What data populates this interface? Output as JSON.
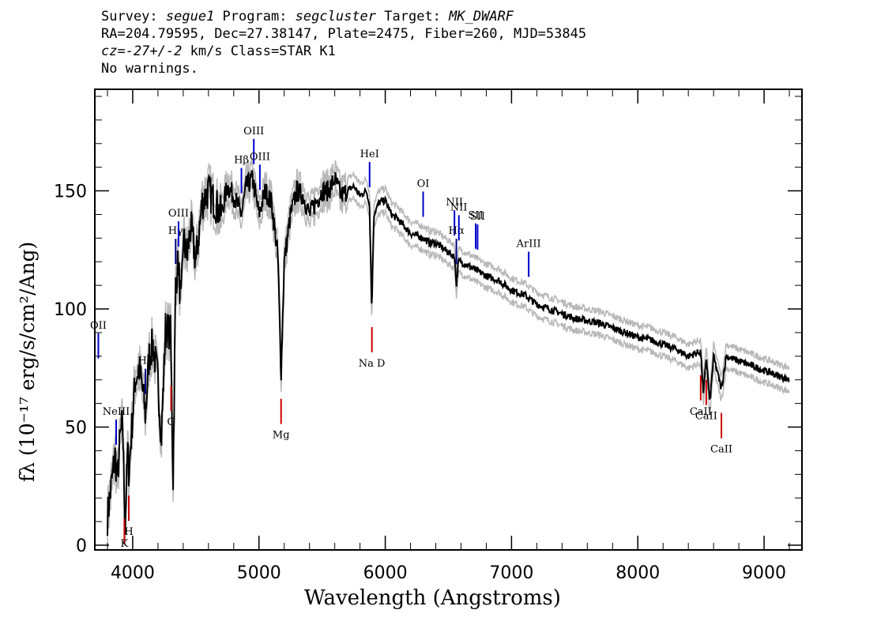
{
  "header": {
    "line1": {
      "l1": "Survey: ",
      "survey": "segue1",
      "l2": " Program: ",
      "program": "segcluster",
      "l3": " Target: ",
      "target": "MK_DWARF"
    },
    "line2": "RA=204.79595, Dec=27.38147, Plate=2475, Fiber=260, MJD=53845",
    "line3": {
      "cz": "cz=-27+/-2",
      "rest": " km/s Class=STAR K1"
    },
    "line4": "No warnings."
  },
  "chart_data": {
    "type": "line",
    "xlabel": "Wavelength (Angstroms)",
    "ylabel": "fλ (10⁻¹⁷ erg/s/cm²/Ang)",
    "xlim": [
      3700,
      9300
    ],
    "ylim": [
      -2,
      193
    ],
    "xticks": [
      4000,
      5000,
      6000,
      7000,
      8000,
      9000
    ],
    "yticks": [
      0,
      50,
      100,
      150
    ],
    "grid": false,
    "series": [
      {
        "color": "#000000",
        "x": [
          3800,
          3830,
          3860,
          3880,
          3900,
          3920,
          3940,
          3960,
          3970,
          3990,
          4020,
          4050,
          4080,
          4101,
          4130,
          4160,
          4200,
          4227,
          4260,
          4300,
          4320,
          4340,
          4360,
          4383,
          4400,
          4430,
          4460,
          4500,
          4550,
          4600,
          4650,
          4700,
          4750,
          4800,
          4861,
          4900,
          4950,
          5000,
          5050,
          5100,
          5150,
          5175,
          5200,
          5250,
          5300,
          5350,
          5400,
          5450,
          5500,
          5550,
          5600,
          5650,
          5700,
          5750,
          5800,
          5850,
          5875,
          5893,
          5910,
          5950,
          6000,
          6050,
          6100,
          6150,
          6200,
          6250,
          6300,
          6350,
          6400,
          6450,
          6500,
          6550,
          6563,
          6580,
          6600,
          6700,
          6800,
          6900,
          7000,
          7100,
          7200,
          7300,
          7400,
          7500,
          7600,
          7700,
          7800,
          7900,
          8000,
          8100,
          8200,
          8300,
          8400,
          8498,
          8520,
          8542,
          8570,
          8600,
          8662,
          8700,
          8800,
          8900,
          9000,
          9100,
          9200
        ],
        "y": [
          12,
          25,
          38,
          28,
          45,
          52,
          8,
          40,
          30,
          48,
          70,
          75,
          65,
          55,
          80,
          85,
          70,
          45,
          92,
          90,
          28,
          110,
          120,
          100,
          130,
          122,
          135,
          120,
          145,
          150,
          145,
          140,
          152,
          148,
          140,
          152,
          155,
          140,
          150,
          145,
          122,
          72,
          120,
          140,
          150,
          148,
          140,
          145,
          150,
          150,
          155,
          148,
          150,
          152,
          148,
          150,
          145,
          100,
          140,
          145,
          146,
          140,
          138,
          135,
          132,
          131,
          130,
          128,
          128,
          126,
          124,
          122,
          110,
          120,
          120,
          117,
          114,
          112,
          108,
          106,
          102,
          100,
          98,
          96,
          95,
          94,
          92,
          90,
          88,
          87,
          85,
          83,
          80,
          82,
          64,
          80,
          60,
          80,
          66,
          80,
          78,
          76,
          74,
          72,
          70
        ]
      }
    ],
    "line_labels": [
      {
        "label": "OII",
        "x": 3728,
        "color": "#0000cc"
      },
      {
        "label": "NeIII",
        "x": 3869,
        "color": "#0000cc"
      },
      {
        "label": "Hδ",
        "x": 4101,
        "color": "#000080"
      },
      {
        "label": "Hγ",
        "x": 4340,
        "color": "#000080"
      },
      {
        "label": "OIII",
        "x": 4363,
        "color": "#0000cc"
      },
      {
        "label": "Hβ",
        "x": 4861,
        "color": "#0000cc"
      },
      {
        "label": "OIII",
        "x": 4959,
        "color": "#0000cc"
      },
      {
        "label": "OIII",
        "x": 5007,
        "color": "#0000cc"
      },
      {
        "label": "HeI",
        "x": 5876,
        "color": "#0000cc"
      },
      {
        "label": "OI",
        "x": 6300,
        "color": "#0000cc"
      },
      {
        "label": "NII",
        "x": 6548,
        "color": "#0000cc"
      },
      {
        "label": "Hα",
        "x": 6563,
        "color": "#000080"
      },
      {
        "label": "NII",
        "x": 6583,
        "color": "#0000cc"
      },
      {
        "label": "SII",
        "x": 6716,
        "color": "#0000cc"
      },
      {
        "label": "SII",
        "x": 6731,
        "color": "#0000cc"
      },
      {
        "label": "ArIII",
        "x": 7136,
        "color": "#0000cc"
      }
    ],
    "absorption_labels": [
      {
        "label": "K",
        "x": 3934,
        "color": "#cc0000"
      },
      {
        "label": "H",
        "x": 3969,
        "color": "#cc0000"
      },
      {
        "label": "G",
        "x": 4304,
        "color": "#cc0000"
      },
      {
        "label": "Mg",
        "x": 5175,
        "color": "#cc0000"
      },
      {
        "label": "Na D",
        "x": 5894,
        "color": "#cc0000"
      },
      {
        "label": "CaII",
        "x": 8498,
        "color": "#cc0000"
      },
      {
        "label": "CaII",
        "x": 8542,
        "color": "#cc0000"
      },
      {
        "label": "CaII",
        "x": 8662,
        "color": "#cc0000"
      }
    ]
  }
}
